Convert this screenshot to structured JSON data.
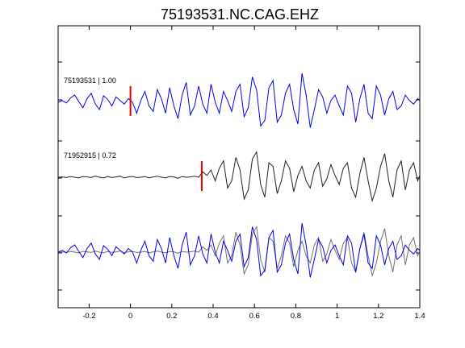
{
  "chart_data": {
    "type": "line",
    "title": "75193531.NC.CAG.EHZ",
    "xlabel": "",
    "ylabel": "",
    "xlim": [
      -0.35,
      1.4
    ],
    "x_ticks": [
      -0.2,
      0,
      0.2,
      0.4,
      0.6,
      0.8,
      1,
      1.2,
      1.4
    ],
    "x_tick_labels": [
      "-0.2",
      "0",
      "0.2",
      "0.4",
      "0.6",
      "0.8",
      "1",
      "1.2",
      "1.4"
    ],
    "grid": false,
    "traces": [
      {
        "label": "75193531 | 1.00",
        "event_id": "75193531",
        "correlation": 1.0,
        "color": "#0000ee",
        "pick_time": 0,
        "x": [
          -0.35,
          -0.33,
          -0.31,
          -0.29,
          -0.27,
          -0.25,
          -0.23,
          -0.21,
          -0.19,
          -0.17,
          -0.15,
          -0.13,
          -0.11,
          -0.09,
          -0.07,
          -0.05,
          -0.03,
          -0.01,
          0.01,
          0.03,
          0.05,
          0.07,
          0.09,
          0.11,
          0.13,
          0.15,
          0.17,
          0.19,
          0.21,
          0.23,
          0.25,
          0.27,
          0.29,
          0.31,
          0.33,
          0.35,
          0.37,
          0.39,
          0.41,
          0.43,
          0.45,
          0.47,
          0.49,
          0.51,
          0.53,
          0.55,
          0.57,
          0.59,
          0.61,
          0.63,
          0.65,
          0.67,
          0.69,
          0.71,
          0.73,
          0.75,
          0.77,
          0.79,
          0.81,
          0.83,
          0.85,
          0.87,
          0.89,
          0.91,
          0.93,
          0.95,
          0.97,
          0.99,
          1.01,
          1.03,
          1.05,
          1.07,
          1.09,
          1.11,
          1.13,
          1.15,
          1.17,
          1.19,
          1.21,
          1.23,
          1.25,
          1.27,
          1.29,
          1.31,
          1.33,
          1.35,
          1.37,
          1.39,
          1.4
        ],
        "y": [
          0.0,
          0.05,
          -0.02,
          0.12,
          0.2,
          0.02,
          -0.15,
          0.1,
          0.25,
          -0.05,
          -0.2,
          0.18,
          0.08,
          -0.1,
          0.15,
          0.05,
          -0.05,
          0.1,
          0.0,
          -0.3,
          0.05,
          0.3,
          -0.1,
          -0.25,
          0.35,
          0.1,
          -0.3,
          0.4,
          -0.1,
          -0.45,
          0.2,
          0.55,
          -0.35,
          -0.1,
          0.45,
          -0.05,
          -0.3,
          0.5,
          0.0,
          -0.3,
          0.3,
          0.05,
          -0.25,
          0.3,
          0.5,
          -0.4,
          -0.15,
          0.7,
          0.35,
          -0.65,
          -0.5,
          0.4,
          0.6,
          -0.55,
          -0.35,
          0.25,
          0.5,
          -0.2,
          -0.6,
          0.8,
          0.2,
          -0.7,
          -0.2,
          0.35,
          0.15,
          -0.3,
          0.05,
          0.2,
          -0.1,
          -0.35,
          0.45,
          0.25,
          -0.55,
          0.1,
          0.5,
          -0.3,
          -0.45,
          0.45,
          0.2,
          -0.35,
          0.1,
          0.3,
          -0.2,
          -0.1,
          0.2,
          0.05,
          -0.05,
          0.1,
          0.05
        ]
      },
      {
        "label": "71952915 | 0.72",
        "event_id": "71952915",
        "correlation": 0.72,
        "color": "#202020",
        "pick_time": 0.345,
        "x": [
          -0.35,
          -0.33,
          -0.31,
          -0.29,
          -0.27,
          -0.25,
          -0.23,
          -0.21,
          -0.19,
          -0.17,
          -0.15,
          -0.13,
          -0.11,
          -0.09,
          -0.07,
          -0.05,
          -0.03,
          -0.01,
          0.01,
          0.03,
          0.05,
          0.07,
          0.09,
          0.11,
          0.13,
          0.15,
          0.17,
          0.19,
          0.21,
          0.23,
          0.25,
          0.27,
          0.29,
          0.31,
          0.33,
          0.35,
          0.37,
          0.39,
          0.41,
          0.43,
          0.45,
          0.47,
          0.49,
          0.51,
          0.53,
          0.55,
          0.57,
          0.59,
          0.61,
          0.63,
          0.65,
          0.67,
          0.69,
          0.71,
          0.73,
          0.75,
          0.77,
          0.79,
          0.81,
          0.83,
          0.85,
          0.87,
          0.89,
          0.91,
          0.93,
          0.95,
          0.97,
          0.99,
          1.01,
          1.03,
          1.05,
          1.07,
          1.09,
          1.11,
          1.13,
          1.15,
          1.17,
          1.19,
          1.21,
          1.23,
          1.25,
          1.27,
          1.29,
          1.31,
          1.33,
          1.35,
          1.37,
          1.39,
          1.4
        ],
        "y": [
          0.0,
          0.01,
          -0.01,
          0.02,
          0.0,
          -0.02,
          0.02,
          0.01,
          -0.01,
          0.03,
          0.0,
          -0.02,
          0.02,
          -0.01,
          0.01,
          0.03,
          -0.02,
          0.01,
          0.02,
          -0.01,
          0.0,
          0.02,
          -0.02,
          0.01,
          0.03,
          0.0,
          -0.02,
          0.02,
          0.01,
          -0.03,
          0.02,
          0.0,
          0.01,
          0.03,
          0.0,
          0.15,
          0.05,
          0.2,
          -0.1,
          0.25,
          0.45,
          -0.3,
          -0.1,
          0.55,
          0.2,
          -0.6,
          -0.35,
          0.5,
          0.7,
          -0.2,
          -0.55,
          0.4,
          0.3,
          -0.45,
          -0.1,
          0.45,
          0.25,
          -0.4,
          0.05,
          0.3,
          -0.1,
          -0.3,
          0.2,
          0.4,
          -0.25,
          -0.05,
          0.35,
          0.05,
          -0.2,
          0.25,
          0.4,
          -0.3,
          -0.55,
          0.1,
          0.55,
          -0.1,
          -0.65,
          -0.3,
          0.3,
          0.65,
          -0.1,
          -0.55,
          0.2,
          0.45,
          -0.35,
          0.2,
          0.4,
          -0.1,
          0.05
        ]
      }
    ],
    "overlay": {
      "description_free": true,
      "traces": [
        "75193531",
        "71952915"
      ],
      "colors": [
        "#0000ee",
        "#707070"
      ]
    }
  }
}
